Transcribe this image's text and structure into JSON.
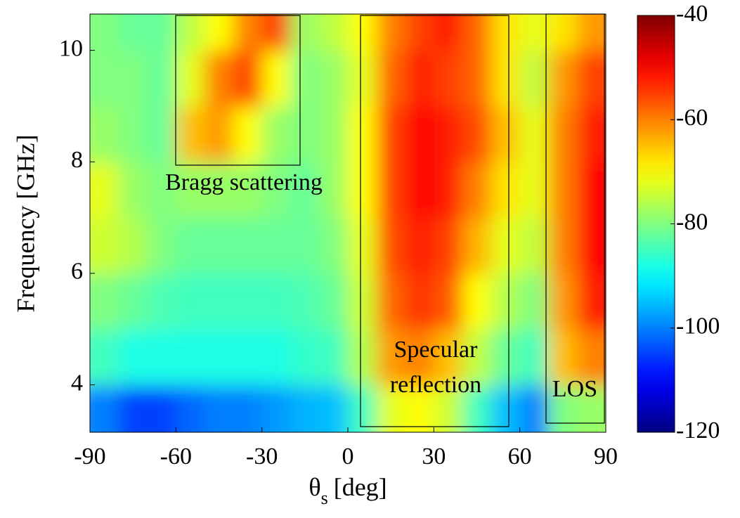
{
  "chart_data": {
    "type": "heatmap",
    "ylabel": "Frequency [GHz]",
    "xlabel_symbol": "θ",
    "xlabel_subscript": "s",
    "xlabel_unit": "[deg]",
    "x": [
      -85,
      -75,
      -65,
      -55,
      -45,
      -35,
      -25,
      -15,
      -5,
      5,
      15,
      25,
      35,
      45,
      55,
      65,
      75,
      85
    ],
    "y": [
      3.5,
      4.5,
      5.5,
      6.5,
      7.5,
      8.5,
      9.5,
      10.5
    ],
    "z": [
      [
        -100,
        -105,
        -105,
        -102,
        -100,
        -100,
        -98,
        -96,
        -95,
        -85,
        -72,
        -70,
        -74,
        -85,
        -95,
        -100,
        -80,
        -78
      ],
      [
        -85,
        -88,
        -88,
        -88,
        -88,
        -88,
        -88,
        -86,
        -85,
        -76,
        -62,
        -60,
        -65,
        -75,
        -82,
        -85,
        -65,
        -60
      ],
      [
        -80,
        -82,
        -84,
        -85,
        -85,
        -85,
        -85,
        -84,
        -82,
        -74,
        -58,
        -54,
        -57,
        -70,
        -76,
        -80,
        -62,
        -52
      ],
      [
        -74,
        -76,
        -80,
        -82,
        -82,
        -82,
        -82,
        -82,
        -80,
        -72,
        -56,
        -52,
        -55,
        -64,
        -72,
        -75,
        -60,
        -50
      ],
      [
        -72,
        -78,
        -80,
        -78,
        -78,
        -78,
        -80,
        -82,
        -78,
        -70,
        -55,
        -50,
        -52,
        -60,
        -68,
        -72,
        -60,
        -50
      ],
      [
        -78,
        -80,
        -82,
        -65,
        -62,
        -70,
        -78,
        -80,
        -78,
        -70,
        -55,
        -50,
        -52,
        -56,
        -65,
        -72,
        -60,
        -52
      ],
      [
        -80,
        -80,
        -82,
        -72,
        -60,
        -55,
        -70,
        -80,
        -78,
        -72,
        -58,
        -52,
        -55,
        -58,
        -68,
        -75,
        -62,
        -55
      ],
      [
        -80,
        -82,
        -82,
        -75,
        -70,
        -60,
        -55,
        -78,
        -75,
        -70,
        -60,
        -55,
        -52,
        -58,
        -68,
        -72,
        -68,
        -62
      ]
    ],
    "xlim": [
      -90,
      90
    ],
    "xticks": [
      -90,
      -60,
      -30,
      0,
      30,
      60,
      90
    ],
    "ylim": [
      3.15,
      10.65
    ],
    "yticks": [
      4,
      6,
      8,
      10
    ],
    "zlim": [
      -120,
      -40
    ],
    "zticks": [
      -120,
      -100,
      -80,
      -60,
      -40
    ],
    "colormap": "jet",
    "annotations": [
      {
        "lines": [
          "Bragg scattering"
        ]
      },
      {
        "lines": [
          "Specular",
          "reflection"
        ]
      },
      {
        "lines": [
          "LOS"
        ]
      }
    ]
  }
}
